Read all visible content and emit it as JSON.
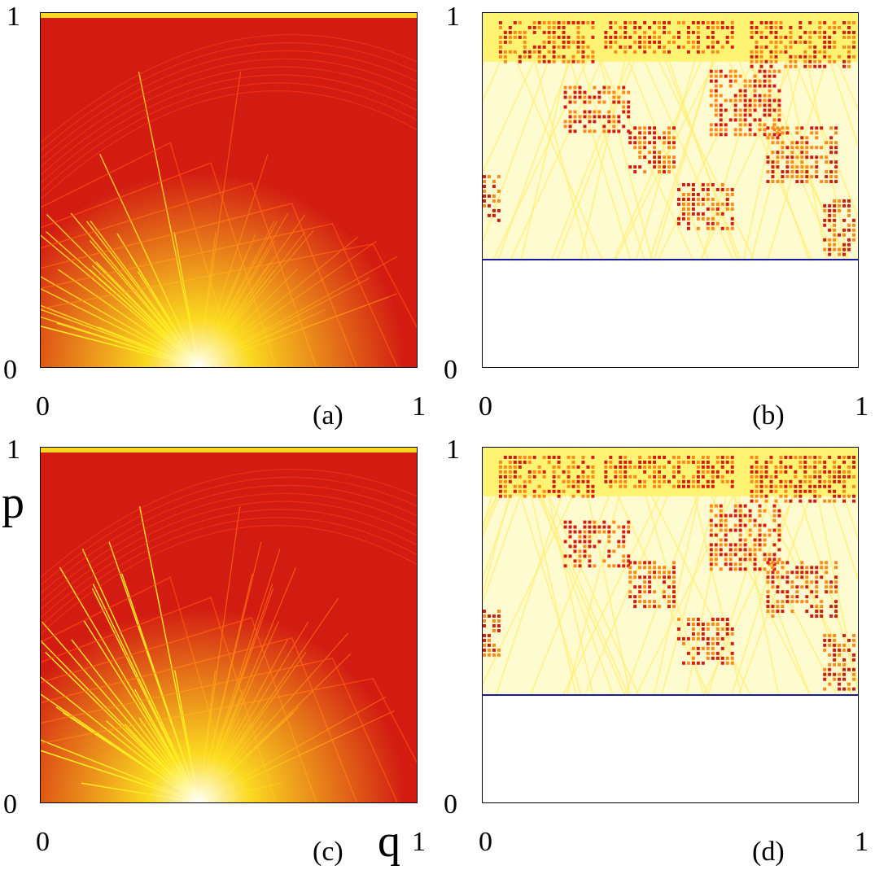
{
  "figure": {
    "panels": [
      {
        "id": "a",
        "caption": "(a)",
        "p_top": "1",
        "p_bottom": "0",
        "q_left": "0",
        "q_right": "1"
      },
      {
        "id": "b",
        "caption": "(b)",
        "p_top": "1",
        "p_bottom": "0",
        "q_left": "0",
        "q_right": "1",
        "cutoff_p": 0.3
      },
      {
        "id": "c",
        "caption": "(c)",
        "p_top": "1",
        "p_bottom": "0",
        "q_left": "0",
        "q_right": "1"
      },
      {
        "id": "d",
        "caption": "(d)",
        "p_top": "1",
        "p_bottom": "0",
        "q_left": "0",
        "q_right": "1",
        "cutoff_p": 0.3
      }
    ],
    "axis_labels": {
      "p": "p",
      "q": "q"
    },
    "colors": {
      "background_dark": "#d21c12",
      "background_red": "#e8301a",
      "highlight_yellow": "#ffee22",
      "pale_yellow": "#fffbd0",
      "cutoff_line": "#1a1aa0"
    }
  }
}
